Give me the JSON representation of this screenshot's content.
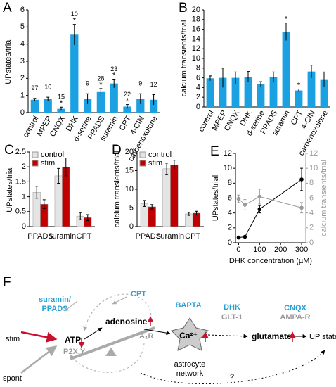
{
  "chart_data": [
    {
      "type": "bar",
      "panel": "A",
      "ylabel": "UPstates/trial",
      "color": "#1ba1e2",
      "categories": [
        "control",
        "MPEP",
        "CNQX",
        "DHK",
        "d-serine",
        "PPADS",
        "suramin",
        "CPT",
        "4-CIN",
        "carbenoxolone"
      ],
      "values": [
        0.75,
        0.8,
        0.22,
        4.55,
        0.8,
        1.2,
        1.7,
        0.35,
        0.8,
        0.75
      ],
      "errors": [
        0.08,
        0.1,
        0.1,
        0.6,
        0.3,
        0.2,
        0.25,
        0.12,
        0.3,
        0.3
      ],
      "n_labels": [
        97,
        10,
        15,
        10,
        9,
        28,
        23,
        22,
        9,
        12
      ],
      "significance": [
        null,
        null,
        "*",
        "*",
        null,
        "*",
        "*",
        "*",
        null,
        null
      ],
      "ylim": [
        0,
        6
      ],
      "yticks": [
        0,
        1,
        2,
        3,
        4,
        5,
        6
      ]
    },
    {
      "type": "bar",
      "panel": "B",
      "ylabel": "calcium transients/trial",
      "color": "#1ba1e2",
      "categories": [
        "control",
        "MPEP",
        "CNQX",
        "DHK",
        "d-serine",
        "PPADS",
        "suramin",
        "CPT",
        "4-CIN",
        "carbenoxolone"
      ],
      "values": [
        5.9,
        6,
        6,
        6.2,
        4.7,
        6.2,
        15.5,
        3.4,
        7.3,
        5.7
      ],
      "errors": [
        0.5,
        2,
        1.2,
        1.1,
        0.5,
        1,
        1.8,
        0.3,
        1.3,
        1.5
      ],
      "significance": [
        null,
        null,
        null,
        null,
        null,
        null,
        "*",
        "*",
        null,
        null
      ],
      "ylim": [
        0,
        20
      ],
      "yticks": [
        0,
        2,
        4,
        6,
        8,
        10,
        12,
        14,
        16,
        18,
        20
      ]
    },
    {
      "type": "grouped_bar",
      "panel": "C",
      "ylabel": "UPstates/trial",
      "categories": [
        "PPADS",
        "suramin",
        "CPT"
      ],
      "series": [
        {
          "name": "control",
          "color": "#e4e4e4",
          "values": [
            1.15,
            1.7,
            0.35
          ],
          "errors": [
            0.2,
            0.25,
            0.12
          ]
        },
        {
          "name": "stim",
          "color": "#c00000",
          "values": [
            0.75,
            2.0,
            0.3
          ],
          "errors": [
            0.15,
            0.3,
            0.1
          ]
        }
      ],
      "ylim": [
        0,
        2.5
      ],
      "yticks": [
        0,
        0.5,
        1,
        1.5,
        2,
        2.5
      ]
    },
    {
      "type": "grouped_bar",
      "panel": "D",
      "ylabel": "calcium transients/trial",
      "categories": [
        "PPADS",
        "suramin",
        "CPT"
      ],
      "series": [
        {
          "name": "control",
          "color": "#e4e4e4",
          "values": [
            6.2,
            15.5,
            3.4
          ],
          "errors": [
            0.8,
            1.5,
            0.4
          ]
        },
        {
          "name": "stim",
          "color": "#c00000",
          "values": [
            5.3,
            16.5,
            3.6
          ],
          "errors": [
            0.6,
            1.3,
            0.5
          ]
        }
      ],
      "ylim": [
        0,
        20
      ],
      "yticks": [
        0,
        5,
        10,
        15,
        20
      ]
    },
    {
      "type": "line",
      "panel": "E",
      "ylabel": "UPstates/trial",
      "y2label": "calcium transients/trial",
      "xlabel": "DHK concentration (µM)",
      "x": [
        0,
        30,
        100,
        300
      ],
      "series": [
        {
          "color": "#000000",
          "values": [
            0.7,
            0.8,
            4.5,
            8.5
          ],
          "errors": [
            0.1,
            0.1,
            0.5,
            1.5
          ]
        },
        {
          "color": "#9a9a9a",
          "axis": "y2",
          "values": [
            5.9,
            5.1,
            6.2,
            4.7
          ],
          "errors": [
            0.5,
            0.7,
            1.0,
            0.7
          ]
        }
      ],
      "xlim": [
        -15,
        320
      ],
      "xticks": [
        0,
        100,
        200,
        300
      ],
      "ylim": [
        0,
        12
      ],
      "yticks": [
        0,
        2,
        4,
        6,
        8,
        10,
        12
      ],
      "y2lim": [
        0,
        12
      ],
      "y2ticks": [
        0,
        2,
        4,
        6,
        8,
        10,
        12
      ]
    }
  ],
  "diagram": {
    "panel": "F",
    "suramin": "suramin/",
    "ppads": "PPADS",
    "cpt": "CPT",
    "stim": "stim",
    "spont": "spont",
    "atp": "ATP",
    "p2xy": "P2X,Y",
    "adenosine": "adenosine",
    "a1r": "A₁R",
    "bapta": "BAPTA",
    "ca": "Ca²⁺",
    "astrocyte": "astrocyte",
    "network": "network",
    "dhk": "DHK",
    "glt1": "GLT-1",
    "glutamate": "glutamate",
    "cnqx": "CNQX",
    "ampar": "AMPA-R",
    "upstate": "UP state",
    "question": "?"
  }
}
